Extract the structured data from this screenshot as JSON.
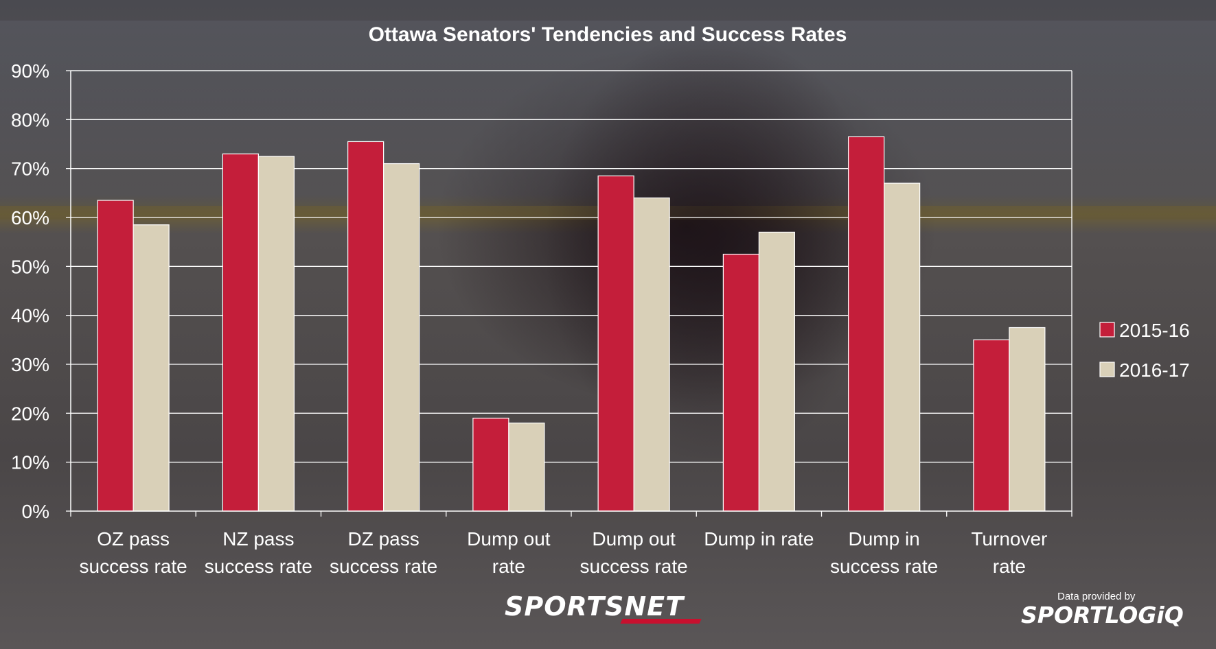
{
  "chart_data": {
    "type": "bar",
    "title": "Ottawa Senators' Tendencies and Success Rates",
    "categories": [
      [
        "OZ pass",
        "success rate"
      ],
      [
        "NZ pass",
        "success rate"
      ],
      [
        "DZ pass",
        "success rate"
      ],
      [
        "Dump out",
        "rate"
      ],
      [
        "Dump out",
        "success rate"
      ],
      [
        "Dump in rate"
      ],
      [
        "Dump in",
        "success rate"
      ],
      [
        "Turnover",
        "rate"
      ]
    ],
    "series": [
      {
        "name": "2015-16",
        "color": "#c41e3a",
        "values": [
          63.5,
          73,
          75.5,
          19,
          68.5,
          52.5,
          76.5,
          35
        ]
      },
      {
        "name": "2016-17",
        "color": "#d9d0b8",
        "values": [
          58.5,
          72.5,
          71,
          18,
          64,
          57,
          67,
          37.5
        ]
      }
    ],
    "yticks": [
      "0%",
      "10%",
      "20%",
      "30%",
      "40%",
      "50%",
      "60%",
      "70%",
      "80%",
      "90%"
    ],
    "ylim": [
      0,
      90
    ],
    "grid": true,
    "legend": "right"
  },
  "branding": {
    "sportsnet": "SPORTSNET",
    "credit": "Data provided by",
    "sportlogiq": "SPORTLOGiQ"
  }
}
